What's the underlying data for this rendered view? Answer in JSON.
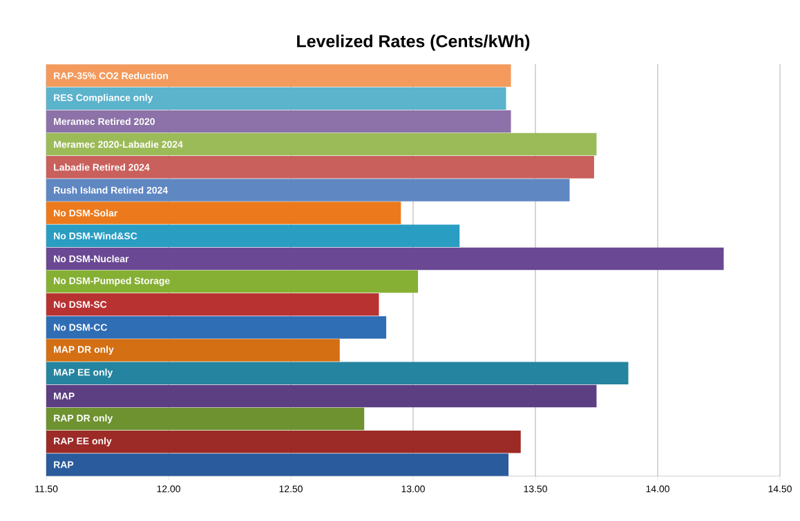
{
  "chart_data": {
    "type": "bar",
    "orientation": "horizontal",
    "title": "Levelized Rates (Cents/kWh)",
    "categories": [
      "RAP-35% CO2 Reduction",
      "RES Compliance  only",
      "Meramec Retired 2020",
      "Meramec 2020-Labadie 2024",
      "Labadie Retired 2024",
      "Rush Island  Retired 2024",
      "No DSM-Solar",
      "No DSM-Wind&SC",
      "No DSM-Nuclear",
      "No DSM-Pumped Storage",
      "No DSM-SC",
      "No DSM-CC",
      "MAP DR only",
      "MAP EE only",
      "MAP",
      "RAP DR only",
      "RAP EE only",
      "RAP"
    ],
    "values": [
      13.4,
      13.38,
      13.4,
      13.75,
      13.74,
      13.64,
      12.95,
      13.19,
      14.27,
      13.02,
      12.86,
      12.89,
      12.7,
      13.88,
      13.75,
      12.8,
      13.44,
      13.39
    ],
    "colors": [
      "#f39a5c",
      "#5bb3cc",
      "#8c72a8",
      "#9bbb59",
      "#c9605c",
      "#5f87c2",
      "#ec7a1c",
      "#2a9dc3",
      "#6a4893",
      "#86b034",
      "#b83232",
      "#2f6db5",
      "#d46f13",
      "#25849f",
      "#5c3e82",
      "#6e9230",
      "#9c2a26",
      "#2a5b9c"
    ],
    "xlim": [
      11.5,
      14.5
    ],
    "xticks": [
      {
        "value": 11.5,
        "label": "11.50"
      },
      {
        "value": 12.0,
        "label": "12.00"
      },
      {
        "value": 12.5,
        "label": "12.50"
      },
      {
        "value": 13.0,
        "label": "13.00"
      },
      {
        "value": 13.5,
        "label": "13.50"
      },
      {
        "value": 14.0,
        "label": "14.00"
      },
      {
        "value": 14.5,
        "label": "14.50"
      }
    ],
    "grid": "x"
  }
}
